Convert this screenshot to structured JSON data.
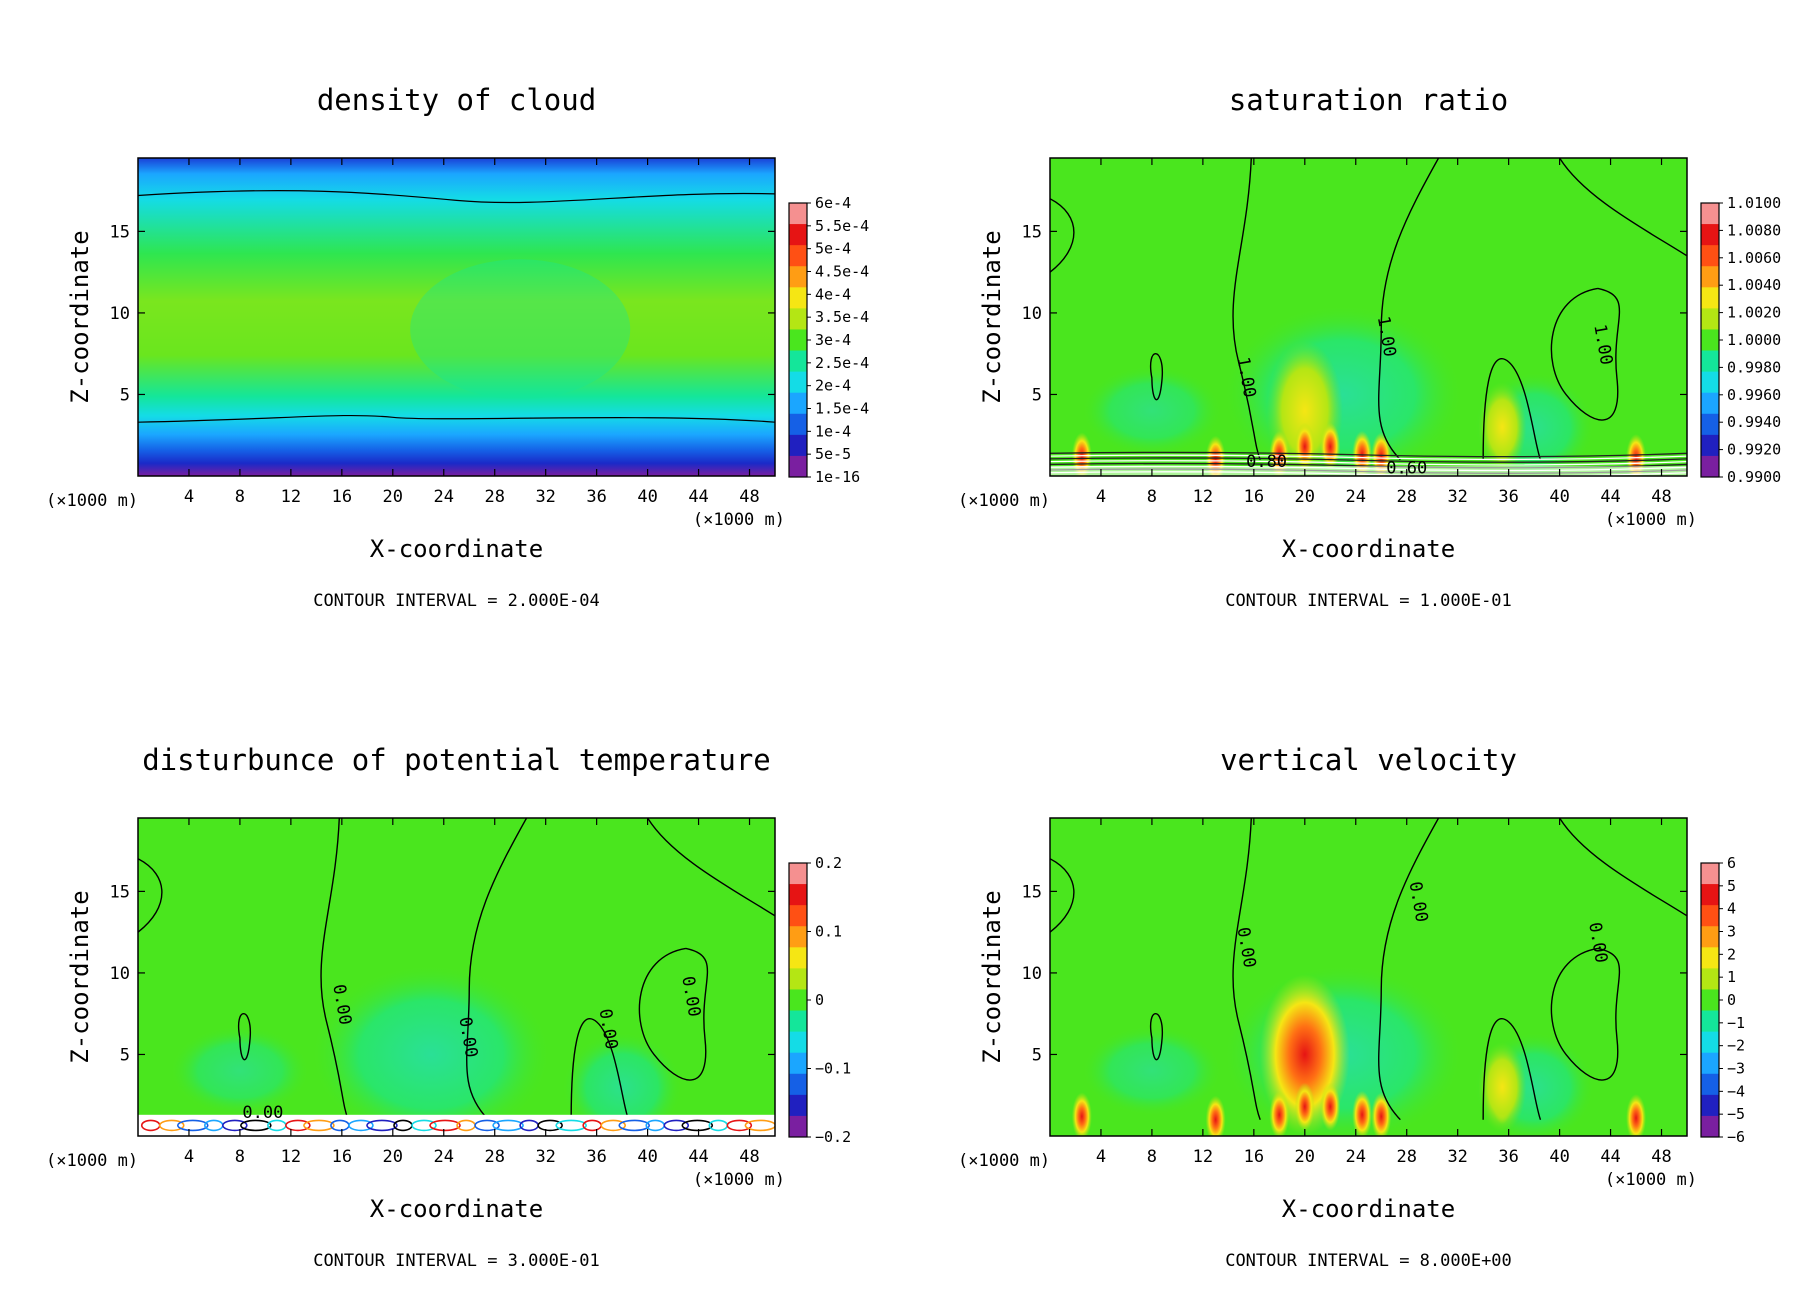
{
  "colorbar_colors": [
    "#7a1fa0",
    "#2020c0",
    "#1560e6",
    "#1ba6ff",
    "#14dce6",
    "#14e69a",
    "#4ae61e",
    "#b4e614",
    "#f5e614",
    "#ff9d14",
    "#ff5014",
    "#e61414",
    "#f59090"
  ],
  "chart_data": [
    {
      "type": "heatmap",
      "title": "density of cloud",
      "xlabel": "X-coordinate",
      "ylabel": "Z-coordinate",
      "x_unit": "(×1000 m)",
      "y_unit": "(×1000 m)",
      "xlim": [
        0,
        50
      ],
      "ylim": [
        0,
        19.5
      ],
      "x_ticks": [
        4,
        8,
        12,
        16,
        20,
        24,
        28,
        32,
        36,
        40,
        44,
        48
      ],
      "y_ticks": [
        5,
        10,
        15
      ],
      "colorbar_labels": [
        "6e-4",
        "5.5e-4",
        "5e-4",
        "4.5e-4",
        "4e-4",
        "3.5e-4",
        "3e-4",
        "2.5e-4",
        "2e-4",
        "1.5e-4",
        "1e-4",
        "5e-5",
        "1e-16"
      ],
      "contour_interval": "CONTOUR INTERVAL = 2.000E-04",
      "contour_labels": []
    },
    {
      "type": "heatmap",
      "title": "saturation ratio",
      "xlabel": "X-coordinate",
      "ylabel": "Z-coordinate",
      "x_unit": "(×1000 m)",
      "y_unit": "(×1000 m)",
      "xlim": [
        0,
        50
      ],
      "ylim": [
        0,
        19.5
      ],
      "x_ticks": [
        4,
        8,
        12,
        16,
        20,
        24,
        28,
        32,
        36,
        40,
        44,
        48
      ],
      "y_ticks": [
        5,
        10,
        15
      ],
      "colorbar_labels": [
        "1.0100",
        "1.0080",
        "1.0060",
        "1.0040",
        "1.0020",
        "1.0000",
        "0.9980",
        "0.9960",
        "0.9940",
        "0.9920",
        "0.9900"
      ],
      "contour_interval": "CONTOUR INTERVAL = 1.000E-01",
      "contour_labels": [
        {
          "text": "1.00",
          "x": 15,
          "z": 6
        },
        {
          "text": "1.00",
          "x": 26,
          "z": 8.5
        },
        {
          "text": "1.00",
          "x": 43,
          "z": 8
        },
        {
          "text": "0.80",
          "x": 17,
          "z": 0.55
        },
        {
          "text": "0.60",
          "x": 28,
          "z": 0.15
        }
      ]
    },
    {
      "type": "heatmap",
      "title": "disturbunce of potential temperature",
      "xlabel": "X-coordinate",
      "ylabel": "Z-coordinate",
      "x_unit": "(×1000 m)",
      "y_unit": "(×1000 m)",
      "xlim": [
        0,
        50
      ],
      "ylim": [
        0,
        19.5
      ],
      "x_ticks": [
        4,
        8,
        12,
        16,
        20,
        24,
        28,
        32,
        36,
        40,
        44,
        48
      ],
      "y_ticks": [
        5,
        10,
        15
      ],
      "colorbar_labels": [
        "0.2",
        "0.1",
        "0",
        "−0.1",
        "−0.2"
      ],
      "contour_interval": "CONTOUR INTERVAL = 3.000E-01",
      "contour_labels": [
        {
          "text": "0.00",
          "x": 15.6,
          "z": 8
        },
        {
          "text": "0.00",
          "x": 25.5,
          "z": 6
        },
        {
          "text": "0.00",
          "x": 36.5,
          "z": 6.5
        },
        {
          "text": "0.00",
          "x": 43,
          "z": 8.5
        },
        {
          "text": "0.00",
          "x": 9.8,
          "z": 1.1
        }
      ]
    },
    {
      "type": "heatmap",
      "title": "vertical velocity",
      "xlabel": "X-coordinate",
      "ylabel": "Z-coordinate",
      "x_unit": "(×1000 m)",
      "y_unit": "(×1000 m)",
      "xlim": [
        0,
        50
      ],
      "ylim": [
        0,
        19.5
      ],
      "x_ticks": [
        4,
        8,
        12,
        16,
        20,
        24,
        28,
        32,
        36,
        40,
        44,
        48
      ],
      "y_ticks": [
        5,
        10,
        15
      ],
      "colorbar_labels": [
        "6",
        "5",
        "4",
        "3",
        "2",
        "1",
        "0",
        "−1",
        "−2",
        "−3",
        "−4",
        "−5",
        "−6"
      ],
      "contour_interval": "CONTOUR INTERVAL = 8.000E+00",
      "contour_labels": [
        {
          "text": "0.00",
          "x": 15,
          "z": 11.5
        },
        {
          "text": "0.00",
          "x": 28.5,
          "z": 14.3
        },
        {
          "text": "0.00",
          "x": 42.6,
          "z": 11.8
        }
      ]
    }
  ]
}
